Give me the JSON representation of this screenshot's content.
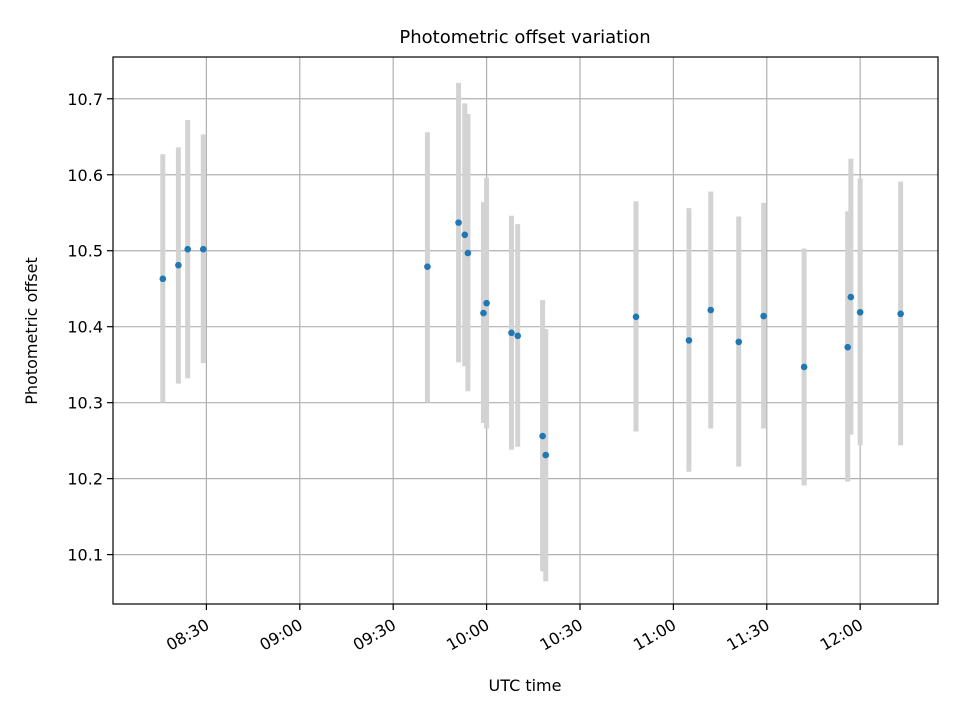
{
  "chart_data": {
    "type": "scatter",
    "title": "Photometric offset variation",
    "xlabel": "UTC time",
    "ylabel": "Photometric offset",
    "x_is_time": true,
    "xlim": [
      "08:00",
      "12:25"
    ],
    "ylim": [
      10.035,
      10.755
    ],
    "xticks": [
      "08:30",
      "09:00",
      "09:30",
      "10:00",
      "10:30",
      "11:00",
      "11:30",
      "12:00"
    ],
    "yticks": [
      10.1,
      10.2,
      10.3,
      10.4,
      10.5,
      10.6,
      10.7
    ],
    "grid": true,
    "marker_color": "#1f77b4",
    "errorbar_color": "#d3d3d3",
    "points": [
      {
        "t": "08:16",
        "y": 10.463,
        "lo": 10.3,
        "hi": 10.627
      },
      {
        "t": "08:21",
        "y": 10.481,
        "lo": 10.325,
        "hi": 10.636
      },
      {
        "t": "08:24",
        "y": 10.502,
        "lo": 10.332,
        "hi": 10.672
      },
      {
        "t": "08:29",
        "y": 10.502,
        "lo": 10.352,
        "hi": 10.653
      },
      {
        "t": "09:41",
        "y": 10.479,
        "lo": 10.3,
        "hi": 10.656
      },
      {
        "t": "09:51",
        "y": 10.537,
        "lo": 10.353,
        "hi": 10.721
      },
      {
        "t": "09:53",
        "y": 10.521,
        "lo": 10.348,
        "hi": 10.694
      },
      {
        "t": "09:54",
        "y": 10.497,
        "lo": 10.315,
        "hi": 10.68
      },
      {
        "t": "09:59",
        "y": 10.418,
        "lo": 10.273,
        "hi": 10.564
      },
      {
        "t": "10:00",
        "y": 10.431,
        "lo": 10.266,
        "hi": 10.596
      },
      {
        "t": "10:08",
        "y": 10.392,
        "lo": 10.238,
        "hi": 10.546
      },
      {
        "t": "10:10",
        "y": 10.388,
        "lo": 10.242,
        "hi": 10.535
      },
      {
        "t": "10:18",
        "y": 10.256,
        "lo": 10.078,
        "hi": 10.435
      },
      {
        "t": "10:19",
        "y": 10.231,
        "lo": 10.065,
        "hi": 10.397
      },
      {
        "t": "10:48",
        "y": 10.413,
        "lo": 10.262,
        "hi": 10.565
      },
      {
        "t": "11:05",
        "y": 10.382,
        "lo": 10.209,
        "hi": 10.556
      },
      {
        "t": "11:12",
        "y": 10.422,
        "lo": 10.266,
        "hi": 10.578
      },
      {
        "t": "11:21",
        "y": 10.38,
        "lo": 10.216,
        "hi": 10.545
      },
      {
        "t": "11:29",
        "y": 10.414,
        "lo": 10.266,
        "hi": 10.563
      },
      {
        "t": "11:42",
        "y": 10.347,
        "lo": 10.191,
        "hi": 10.503
      },
      {
        "t": "11:56",
        "y": 10.373,
        "lo": 10.196,
        "hi": 10.552
      },
      {
        "t": "11:57",
        "y": 10.439,
        "lo": 10.258,
        "hi": 10.621
      },
      {
        "t": "12:00",
        "y": 10.419,
        "lo": 10.244,
        "hi": 10.595
      },
      {
        "t": "12:13",
        "y": 10.417,
        "lo": 10.244,
        "hi": 10.591
      }
    ]
  }
}
